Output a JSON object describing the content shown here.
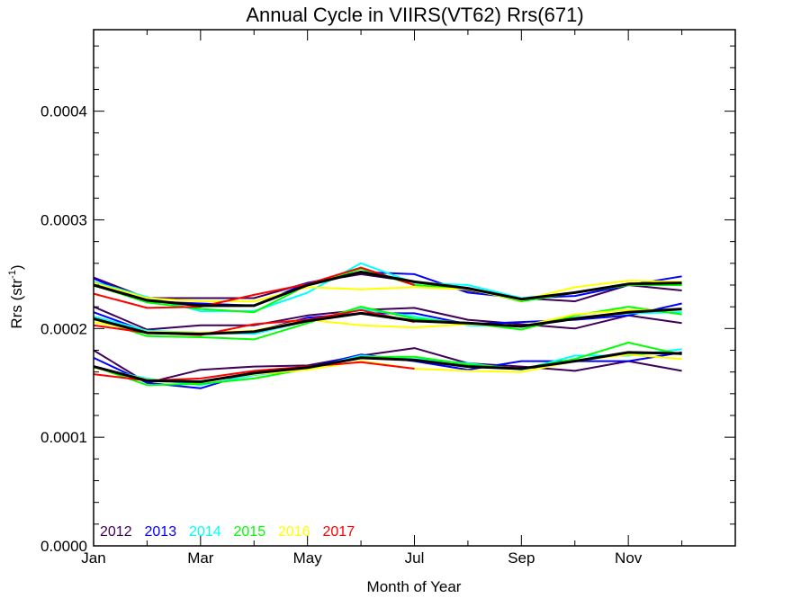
{
  "chart_data": {
    "type": "line",
    "title": "Annual Cycle in VIIRS(VT62) Rrs(671)",
    "xlabel": "Month of Year",
    "ylabel": "Rrs (str",
    "ylabel_sup": "-1",
    "ylabel_close": ")",
    "xlim": [
      1,
      13
    ],
    "ylim": [
      0.0,
      0.000475
    ],
    "x_ticks": [
      {
        "value": 1,
        "label": "Jan"
      },
      {
        "value": 3,
        "label": "Mar"
      },
      {
        "value": 5,
        "label": "May"
      },
      {
        "value": 7,
        "label": "Jul"
      },
      {
        "value": 9,
        "label": "Sep"
      },
      {
        "value": 11,
        "label": "Nov"
      }
    ],
    "y_ticks": [
      {
        "value": 0.0,
        "label": "0.0000"
      },
      {
        "value": 0.0001,
        "label": "0.0001"
      },
      {
        "value": 0.0002,
        "label": "0.0002"
      },
      {
        "value": 0.0003,
        "label": "0.0003"
      },
      {
        "value": 0.0004,
        "label": "0.0004"
      }
    ],
    "grid": false,
    "legend_position": "bottom-left",
    "x": [
      1,
      2,
      3,
      4,
      5,
      6,
      7,
      8,
      9,
      10,
      11,
      12
    ],
    "series": [
      {
        "name": "2012",
        "color": "#3f0057",
        "groups": [
          [
            0.000247,
            0.000228,
            0.000228,
            0.000228,
            0.000242,
            0.00025,
            0.000243,
            0.000235,
            0.000228,
            0.000225,
            0.00024,
            0.000235
          ],
          [
            0.00022,
            0.000199,
            0.000203,
            0.000203,
            0.000212,
            0.000217,
            0.000219,
            0.000208,
            0.000204,
            0.0002,
            0.000212,
            0.000205
          ],
          [
            0.00018,
            0.00015,
            0.000162,
            0.000165,
            0.000166,
            0.000175,
            0.000182,
            0.000168,
            0.000165,
            0.000161,
            0.00017,
            0.000161
          ]
        ]
      },
      {
        "name": "2013",
        "color": "#0000ff",
        "groups": [
          [
            0.000246,
            0.000225,
            0.000223,
            0.000221,
            0.000242,
            0.000252,
            0.00025,
            0.000233,
            0.000228,
            0.00023,
            0.00024,
            0.000248
          ],
          [
            0.000215,
            0.000197,
            0.000196,
            0.000197,
            0.00021,
            0.000214,
            0.000214,
            0.000204,
            0.000206,
            0.000208,
            0.000212,
            0.000223
          ],
          [
            0.000173,
            0.00015,
            0.000145,
            0.00016,
            0.000164,
            0.000176,
            0.00017,
            0.000162,
            0.00017,
            0.00017,
            0.00017,
            0.000178
          ]
        ]
      },
      {
        "name": "2014",
        "color": "#00ffff",
        "groups": [
          [
            0.000243,
            0.000229,
            0.000216,
            0.000216,
            0.000233,
            0.00026,
            0.000242,
            0.00024,
            0.000228,
            0.000233,
            0.00024,
            0.00024
          ],
          [
            0.000211,
            0.000198,
            0.000196,
            0.000195,
            0.000207,
            0.000218,
            0.000211,
            0.000203,
            0.000202,
            0.00021,
            0.000214,
            0.000215
          ],
          [
            0.000164,
            0.000154,
            0.000148,
            0.000157,
            0.000163,
            0.000175,
            0.000172,
            0.000168,
            0.000162,
            0.000175,
            0.000175,
            0.000181
          ]
        ]
      },
      {
        "name": "2015",
        "color": "#00ff00",
        "groups": [
          [
            0.00024,
            0.000224,
            0.000218,
            0.000215,
            0.00024,
            0.000255,
            0.00024,
            0.000237,
            0.000225,
            0.000233,
            0.00024,
            0.00024
          ],
          [
            0.000209,
            0.000193,
            0.000192,
            0.00019,
            0.000205,
            0.00022,
            0.000209,
            0.000205,
            0.000199,
            0.000212,
            0.00022,
            0.000213
          ],
          [
            0.000165,
            0.000148,
            0.000149,
            0.000154,
            0.000163,
            0.000174,
            0.000174,
            0.000167,
            0.000163,
            0.000172,
            0.000187,
            0.000176
          ]
        ]
      },
      {
        "name": "2016",
        "color": "#ffff00",
        "groups": [
          [
            0.000242,
            0.000228,
            0.000225,
            0.000225,
            0.000238,
            0.000236,
            0.000238,
            0.000236,
            0.000226,
            0.000238,
            0.000244,
            0.000243
          ],
          [
            0.000206,
            0.000197,
            0.000196,
            0.000198,
            0.000208,
            0.000203,
            0.000201,
            0.000204,
            0.000202,
            0.000213,
            0.000217,
            0.000217
          ],
          [
            0.000164,
            0.000153,
            0.000151,
            0.000158,
            0.000162,
            0.00017,
            0.000163,
            0.000161,
            0.00016,
            0.00017,
            0.000176,
            0.000172
          ]
        ]
      },
      {
        "name": "2017",
        "color": "#ff0000",
        "groups": [
          [
            0.000232,
            0.000219,
            0.00022,
            0.000231,
            0.000241,
            0.000256,
            0.00024
          ],
          [
            0.000203,
            0.000196,
            0.000194,
            0.000204,
            0.000208,
            0.000217,
            0.000206
          ],
          [
            0.000158,
            0.000152,
            0.000154,
            0.000161,
            0.000165,
            0.000169,
            0.000163
          ]
        ]
      },
      {
        "color": "#000000",
        "groups": [
          [
            0.00024,
            0.000226,
            0.000221,
            0.000221,
            0.00024,
            0.000252,
            0.000243,
            0.000237,
            0.000227,
            0.000233,
            0.000241,
            0.000242
          ],
          [
            0.000209,
            0.000196,
            0.000195,
            0.000197,
            0.000207,
            0.000214,
            0.000207,
            0.000205,
            0.000202,
            0.000209,
            0.000215,
            0.000218
          ],
          [
            0.000165,
            0.000152,
            0.000151,
            0.000159,
            0.000164,
            0.000173,
            0.000171,
            0.000165,
            0.000163,
            0.00017,
            0.000178,
            0.000177
          ]
        ]
      }
    ]
  }
}
